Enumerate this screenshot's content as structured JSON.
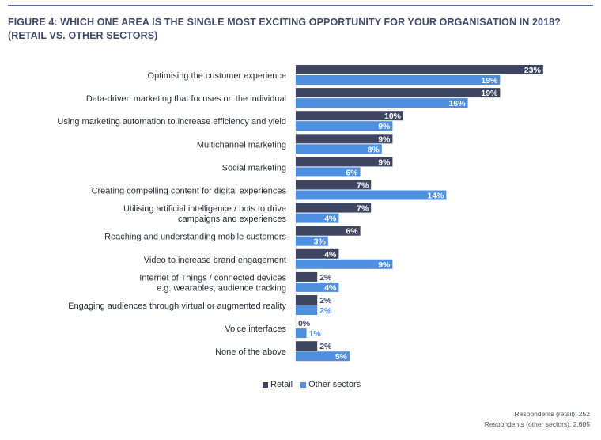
{
  "figure": {
    "title": "FIGURE 4: WHICH ONE AREA IS THE SINGLE MOST EXCITING OPPORTUNITY FOR YOUR ORGANISATION IN 2018? (RETAIL VS. OTHER SECTORS)",
    "notes": [
      "Respondents (retail): 252",
      "Respondents (other sectors): 2,605"
    ]
  },
  "colors": {
    "retail": "#3e4560",
    "other": "#4f8fe0",
    "title": "#404a6b",
    "rule": "#5b6fb8"
  },
  "chart_data": {
    "type": "bar",
    "orientation": "horizontal",
    "value_suffix": "%",
    "categories": [
      [
        "Optimising the customer experience"
      ],
      [
        "Data-driven marketing that focuses on the individual"
      ],
      [
        "Using marketing automation to increase efficiency and yield"
      ],
      [
        "Multichannel marketing"
      ],
      [
        "Social marketing"
      ],
      [
        "Creating compelling content for digital experiences"
      ],
      [
        "Utilising artificial intelligence / bots to drive",
        "campaigns and experiences"
      ],
      [
        "Reaching and understanding mobile customers"
      ],
      [
        "Video to increase brand engagement"
      ],
      [
        "Internet of Things / connected devices",
        "e.g. wearables, audience tracking"
      ],
      [
        "Engaging audiences through virtual or augmented reality"
      ],
      [
        "Voice interfaces"
      ],
      [
        "None of the above"
      ]
    ],
    "series": [
      {
        "name": "Retail",
        "color": "#3e4560",
        "values": [
          23,
          19,
          10,
          9,
          9,
          7,
          7,
          6,
          4,
          2,
          2,
          0,
          2
        ]
      },
      {
        "name": "Other sectors",
        "color": "#4f8fe0",
        "values": [
          19,
          16,
          9,
          8,
          6,
          14,
          4,
          3,
          9,
          4,
          2,
          1,
          5
        ]
      }
    ],
    "legend_position": "bottom-center",
    "grid": false
  }
}
